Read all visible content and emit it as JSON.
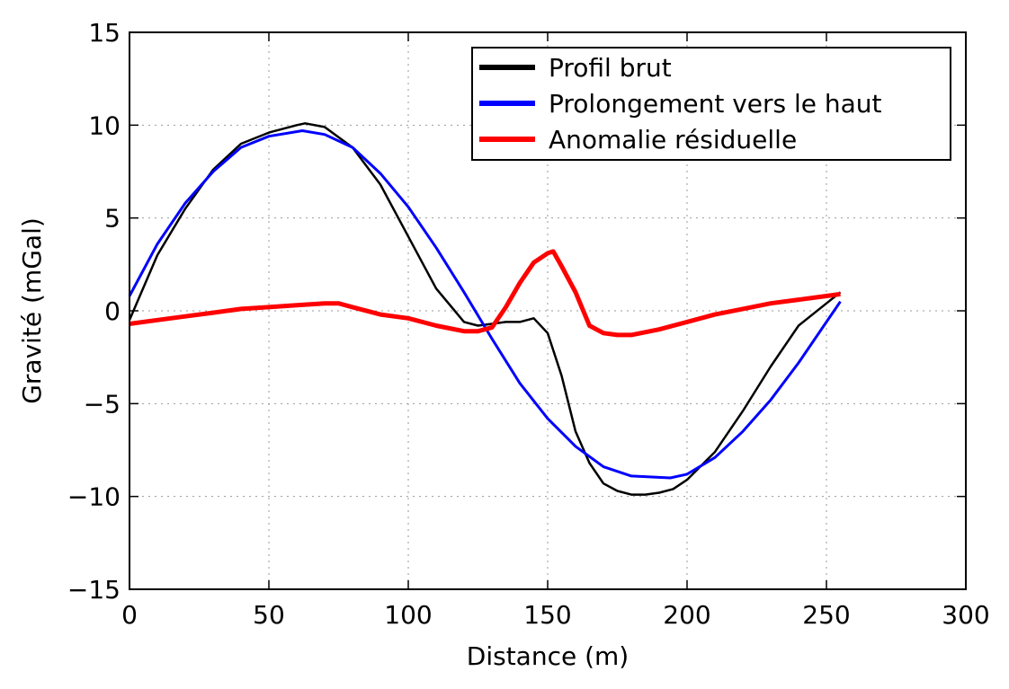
{
  "chart_data": {
    "type": "line",
    "title": "",
    "xlabel": "Distance (m)",
    "ylabel": "Gravité (mGal)",
    "xlim": [
      0,
      300
    ],
    "ylim": [
      -15,
      15
    ],
    "xticks": [
      0,
      50,
      100,
      150,
      200,
      250,
      300
    ],
    "yticks": [
      -15,
      -10,
      -5,
      0,
      5,
      10,
      15
    ],
    "xtick_labels": [
      "0",
      "50",
      "100",
      "150",
      "200",
      "250",
      "300"
    ],
    "ytick_labels": [
      "−15",
      "−10",
      "−5",
      "0",
      "5",
      "10",
      "15"
    ],
    "grid": true,
    "legend_position": "top-right",
    "series": [
      {
        "name": "Profil brut",
        "color": "#000000",
        "x": [
          0,
          10,
          20,
          30,
          40,
          50,
          60,
          63,
          70,
          80,
          90,
          100,
          110,
          120,
          125,
          130,
          135,
          140,
          145,
          150,
          155,
          160,
          165,
          170,
          175,
          180,
          185,
          190,
          195,
          200,
          210,
          220,
          230,
          240,
          250,
          255
        ],
        "y": [
          -0.5,
          3.0,
          5.5,
          7.6,
          9.0,
          9.6,
          10.0,
          10.1,
          9.9,
          8.8,
          6.8,
          4.0,
          1.2,
          -0.6,
          -0.8,
          -0.7,
          -0.6,
          -0.6,
          -0.4,
          -1.2,
          -3.5,
          -6.5,
          -8.2,
          -9.3,
          -9.7,
          -9.9,
          -9.9,
          -9.8,
          -9.6,
          -9.1,
          -7.6,
          -5.4,
          -3.0,
          -0.8,
          0.4,
          1.0
        ]
      },
      {
        "name": "Prolongement vers le haut",
        "color": "#0000ff",
        "x": [
          0,
          10,
          20,
          30,
          40,
          50,
          62,
          70,
          80,
          90,
          100,
          110,
          120,
          130,
          140,
          150,
          160,
          170,
          180,
          194,
          200,
          210,
          220,
          230,
          240,
          250,
          255
        ],
        "y": [
          0.8,
          3.6,
          5.8,
          7.5,
          8.8,
          9.4,
          9.7,
          9.5,
          8.8,
          7.4,
          5.6,
          3.4,
          1.0,
          -1.5,
          -3.9,
          -5.8,
          -7.3,
          -8.4,
          -8.9,
          -9.0,
          -8.8,
          -7.9,
          -6.5,
          -4.8,
          -2.8,
          -0.6,
          0.5
        ]
      },
      {
        "name": "Anomalie résiduelle",
        "color": "#ff0000",
        "x": [
          0,
          10,
          20,
          30,
          40,
          50,
          60,
          70,
          75,
          80,
          90,
          100,
          110,
          120,
          125,
          130,
          135,
          140,
          145,
          150,
          152,
          155,
          160,
          165,
          170,
          175,
          180,
          190,
          200,
          210,
          220,
          230,
          240,
          250,
          255
        ],
        "y": [
          -0.7,
          -0.5,
          -0.3,
          -0.1,
          0.1,
          0.2,
          0.3,
          0.4,
          0.4,
          0.2,
          -0.2,
          -0.4,
          -0.8,
          -1.1,
          -1.1,
          -0.9,
          0.2,
          1.5,
          2.6,
          3.1,
          3.2,
          2.4,
          1.0,
          -0.8,
          -1.2,
          -1.3,
          -1.3,
          -1.0,
          -0.6,
          -0.2,
          0.1,
          0.4,
          0.6,
          0.8,
          0.9
        ]
      }
    ]
  }
}
